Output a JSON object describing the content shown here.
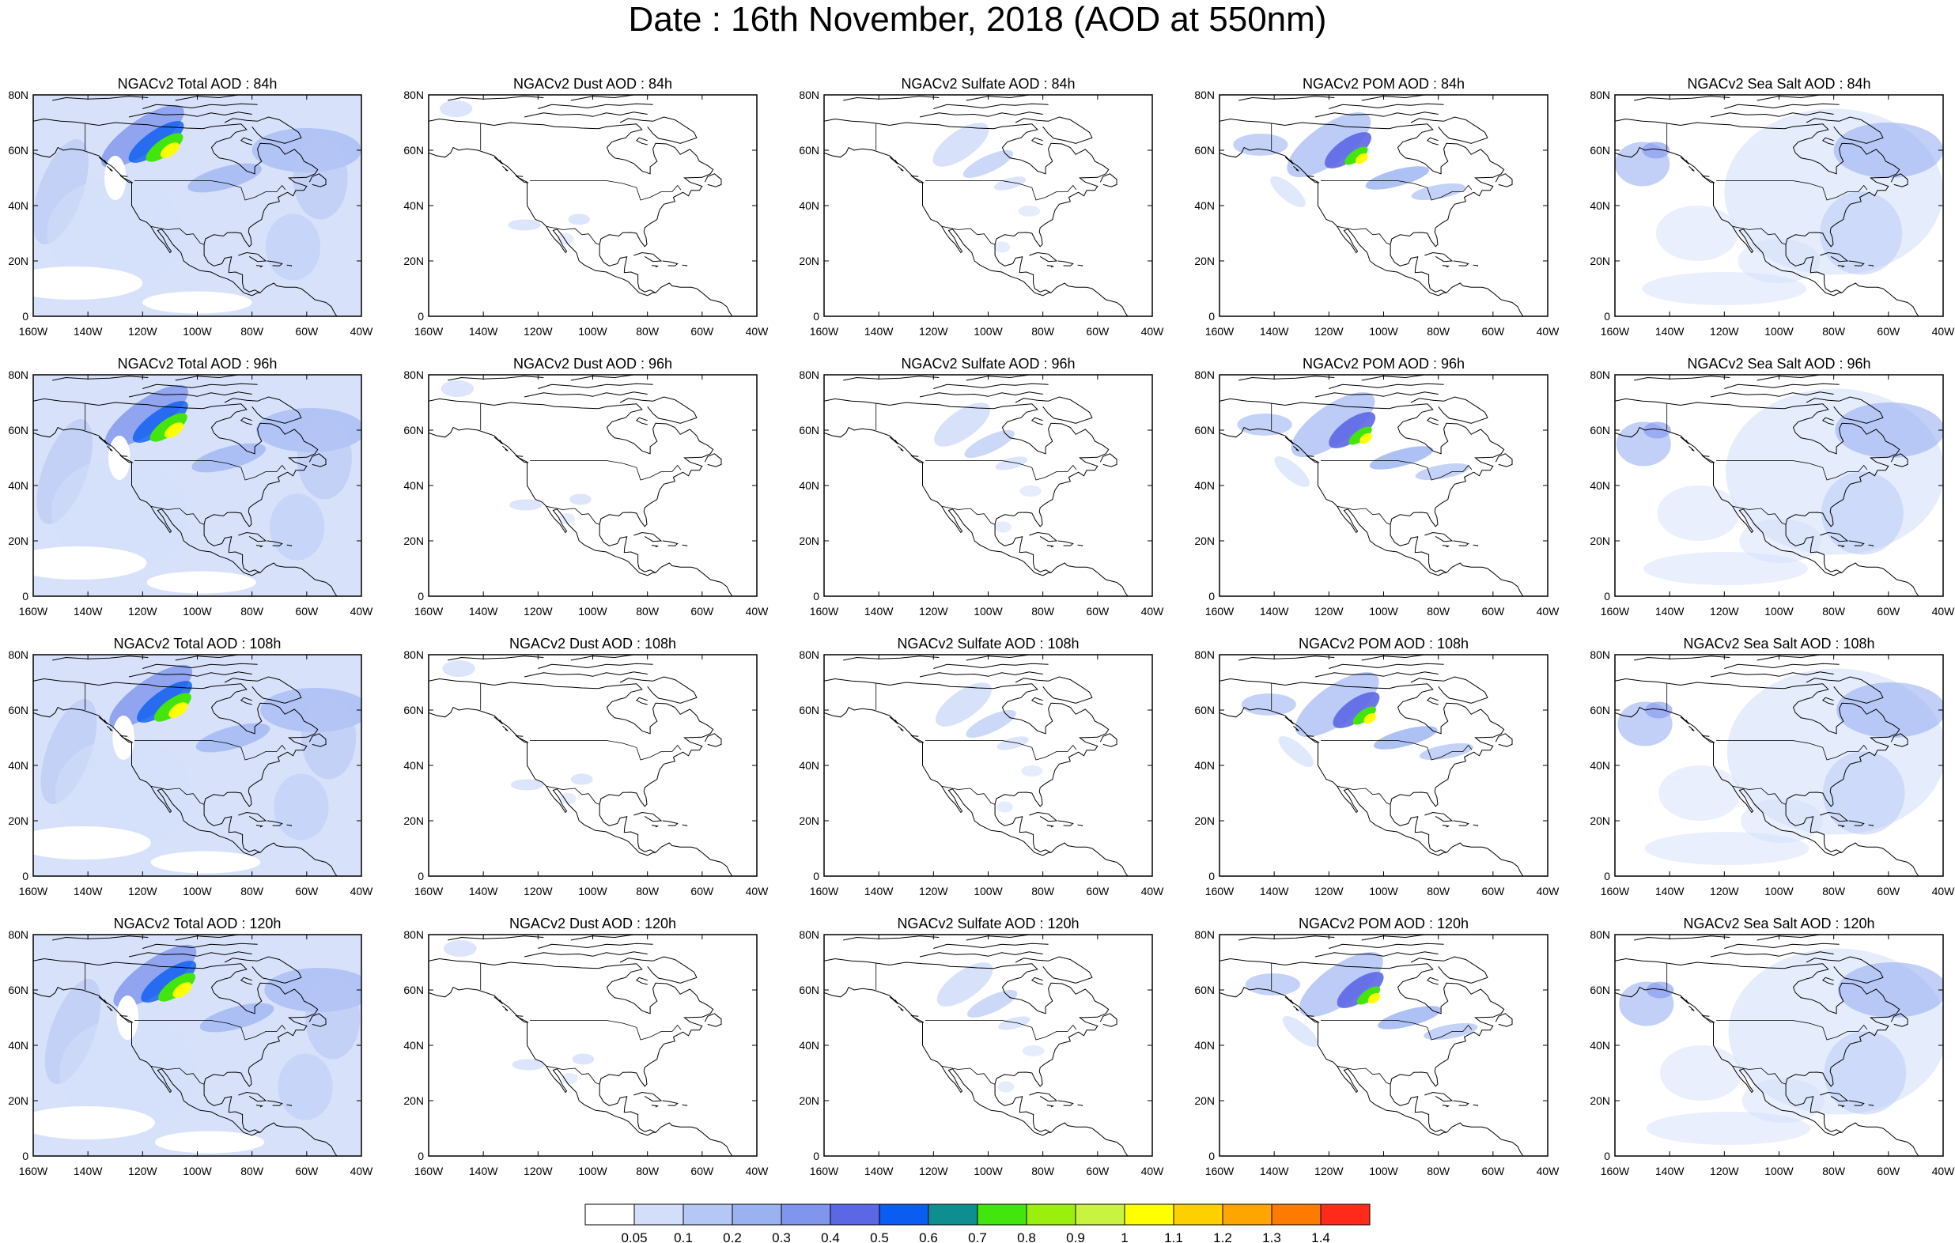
{
  "title": "Date : 16th November, 2018 (AOD at 550nm)",
  "grid": {
    "rows": [
      "84h",
      "96h",
      "108h",
      "120h"
    ],
    "columns": [
      "Total",
      "Dust",
      "Sulfate",
      "POM",
      "Sea Salt"
    ]
  },
  "panels": [
    [
      {
        "title": "NGACv2 Total AOD : 84h",
        "species": "total"
      },
      {
        "title": "NGACv2 Dust AOD : 84h",
        "species": "dust"
      },
      {
        "title": "NGACv2 Sulfate AOD : 84h",
        "species": "sulfate"
      },
      {
        "title": "NGACv2 POM AOD : 84h",
        "species": "pom"
      },
      {
        "title": "NGACv2 Sea Salt AOD : 84h",
        "species": "seasalt"
      }
    ],
    [
      {
        "title": "NGACv2 Total AOD : 96h",
        "species": "total"
      },
      {
        "title": "NGACv2 Dust AOD : 96h",
        "species": "dust"
      },
      {
        "title": "NGACv2 Sulfate AOD : 96h",
        "species": "sulfate"
      },
      {
        "title": "NGACv2 POM AOD : 96h",
        "species": "pom"
      },
      {
        "title": "NGACv2 Sea Salt AOD : 96h",
        "species": "seasalt"
      }
    ],
    [
      {
        "title": "NGACv2 Total AOD : 108h",
        "species": "total"
      },
      {
        "title": "NGACv2 Dust AOD : 108h",
        "species": "dust"
      },
      {
        "title": "NGACv2 Sulfate AOD : 108h",
        "species": "sulfate"
      },
      {
        "title": "NGACv2 POM AOD : 108h",
        "species": "pom"
      },
      {
        "title": "NGACv2 Sea Salt AOD : 108h",
        "species": "seasalt"
      }
    ],
    [
      {
        "title": "NGACv2 Total AOD : 120h",
        "species": "total"
      },
      {
        "title": "NGACv2 Dust AOD : 120h",
        "species": "dust"
      },
      {
        "title": "NGACv2 Sulfate AOD : 120h",
        "species": "sulfate"
      },
      {
        "title": "NGACv2 POM AOD : 120h",
        "species": "pom"
      },
      {
        "title": "NGACv2 Sea Salt  AOD : 120h",
        "species": "seasalt"
      }
    ]
  ],
  "axes": {
    "lat_ticks": [
      "0",
      "20N",
      "40N",
      "60N",
      "80N"
    ],
    "lon_ticks": [
      "160W",
      "140W",
      "120W",
      "100W",
      "80W",
      "60W",
      "40W"
    ]
  },
  "colorbar": {
    "labels": [
      "0.05",
      "0.1",
      "0.2",
      "0.3",
      "0.4",
      "0.5",
      "0.6",
      "0.7",
      "0.8",
      "0.9",
      "1",
      "1.1",
      "1.2",
      "1.3",
      "1.4"
    ],
    "colors": [
      "#ffffff",
      "#d3dffa",
      "#b5c7f5",
      "#9ab1f2",
      "#7f95ee",
      "#5c67e6",
      "#0b5cf0",
      "#0e8e8e",
      "#42e60e",
      "#9af00c",
      "#c8f440",
      "#ffff00",
      "#ffd000",
      "#ffa500",
      "#ff7a00",
      "#ff2a1a"
    ]
  }
}
